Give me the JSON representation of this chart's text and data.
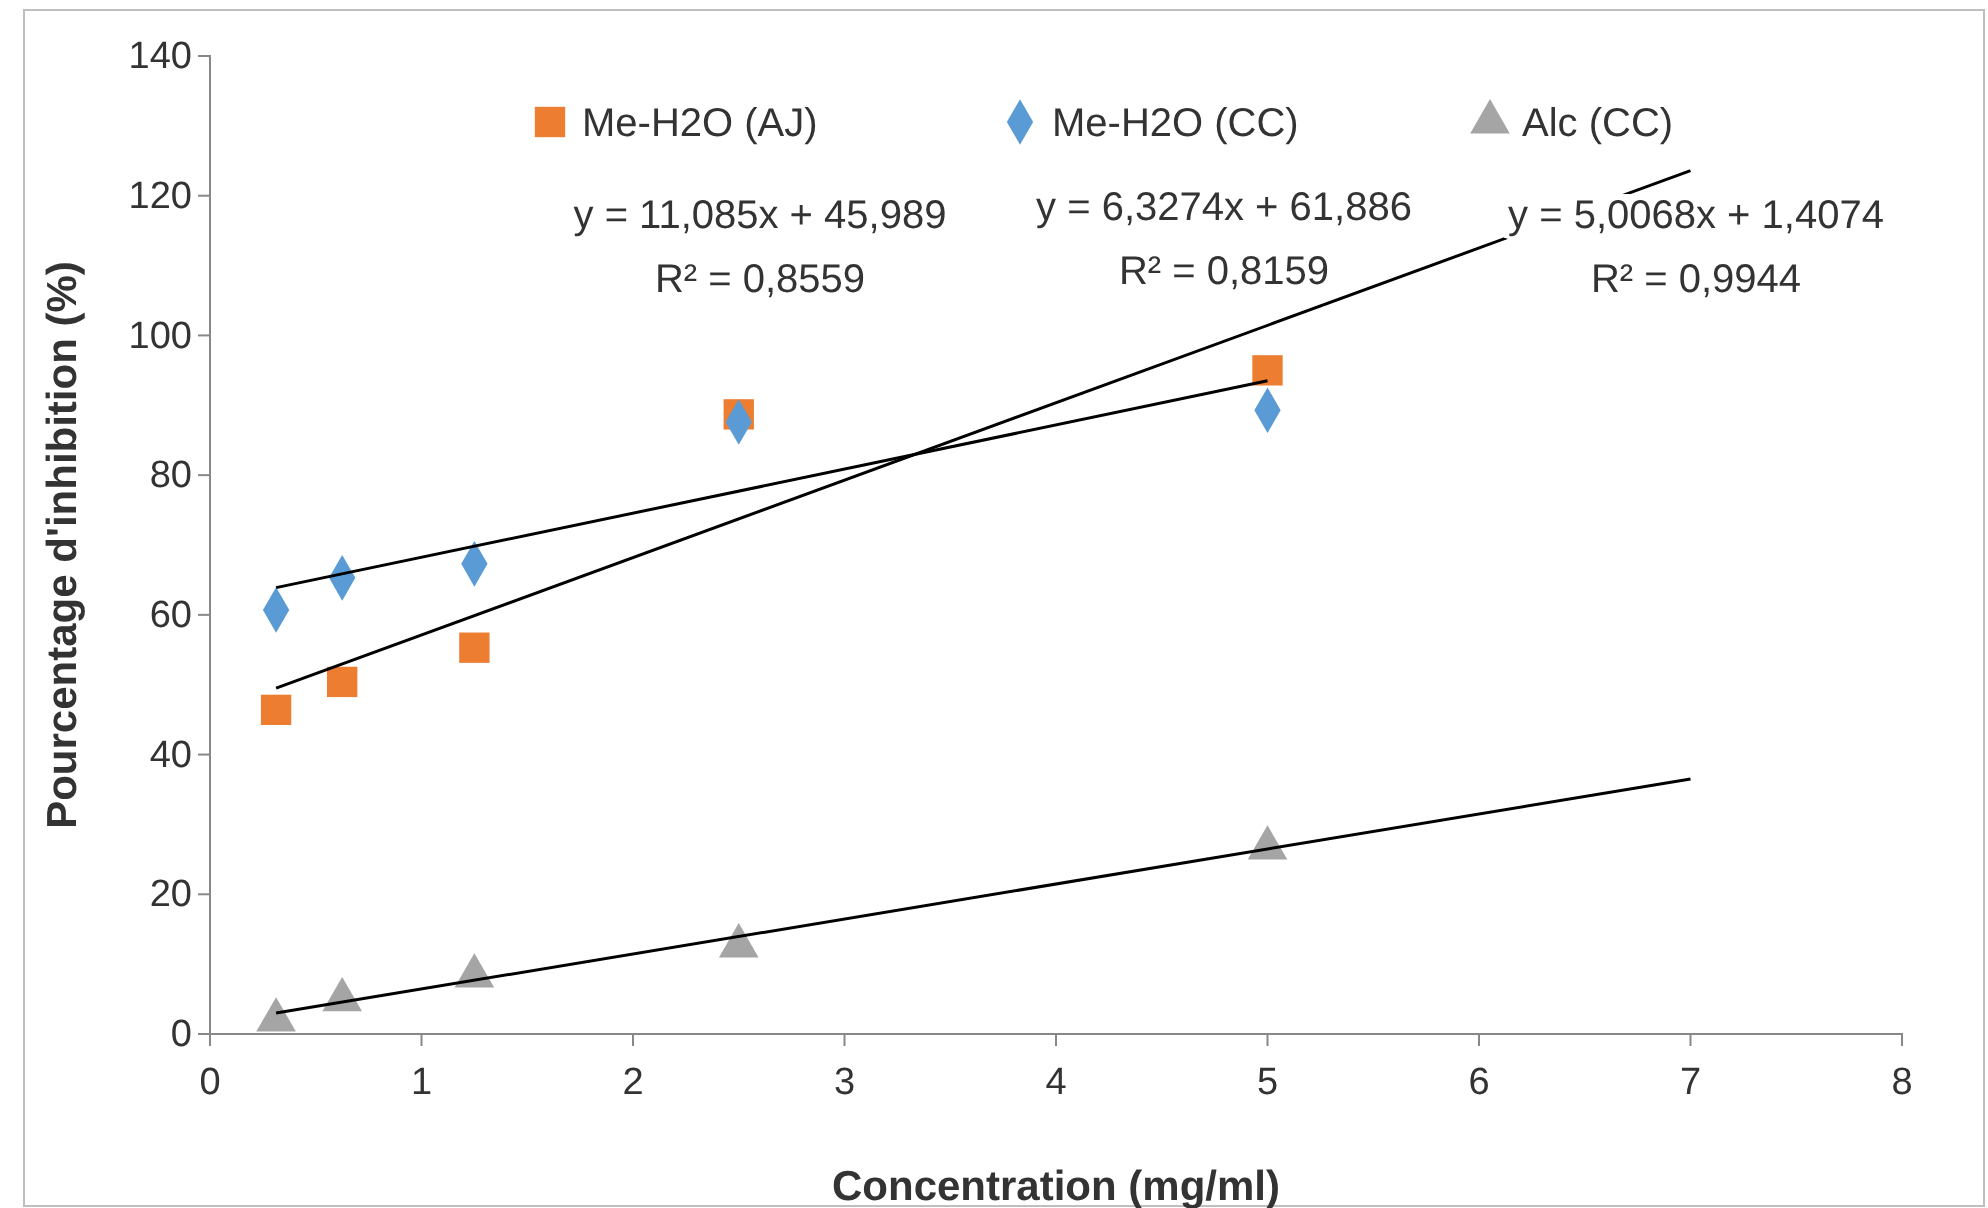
{
  "chart_data": {
    "type": "scatter",
    "xlabel": "Concentration (mg/ml)",
    "ylabel": "Pourcentage d'inhibition (%)",
    "xlim": [
      0,
      8
    ],
    "xticks": [
      0,
      1,
      2,
      3,
      4,
      5,
      6,
      7,
      8
    ],
    "ylim": [
      0,
      140
    ],
    "yticks": [
      0,
      20,
      40,
      60,
      80,
      100,
      120,
      140
    ],
    "grid": false,
    "legend": "top",
    "annotations": [
      "y = 11,085x + 45,989",
      "R² = 0,8559",
      "y = 6,3274x + 61,886",
      "R² = 0,8159",
      "y = 5,0068x + 1,4074",
      "R² = 0,9944"
    ],
    "series": [
      {
        "name": "Me-H2O (AJ)",
        "marker": "square",
        "color": "#ed7d31",
        "x": [
          0.3125,
          0.625,
          1.25,
          2.5,
          5
        ],
        "values": [
          46.4,
          50.4,
          55.3,
          88.7,
          95.0
        ]
      },
      {
        "name": "Me-H2O (CC)",
        "marker": "diamond",
        "color": "#5b9bd5",
        "x": [
          0.3125,
          0.625,
          1.25,
          2.5,
          5
        ],
        "values": [
          60.7,
          65.3,
          67.3,
          87.6,
          89.3
        ]
      },
      {
        "name": "Alc (CC)",
        "marker": "triangle",
        "color": "#a5a5a5",
        "x": [
          0.3125,
          0.625,
          1.25,
          2.5,
          5
        ],
        "values": [
          2.0,
          4.9,
          8.3,
          12.6,
          26.6
        ]
      },
      {
        "type": "line",
        "marker": "none",
        "color": "#000000",
        "x": [
          0.3125,
          7
        ],
        "values": [
          49.5,
          123.6
        ]
      },
      {
        "type": "line",
        "marker": "none",
        "color": "#000000",
        "x": [
          0.3125,
          5
        ],
        "values": [
          63.9,
          93.5
        ]
      },
      {
        "type": "line",
        "marker": "none",
        "color": "#000000",
        "x": [
          0.3125,
          7
        ],
        "values": [
          3.0,
          36.5
        ]
      }
    ]
  }
}
